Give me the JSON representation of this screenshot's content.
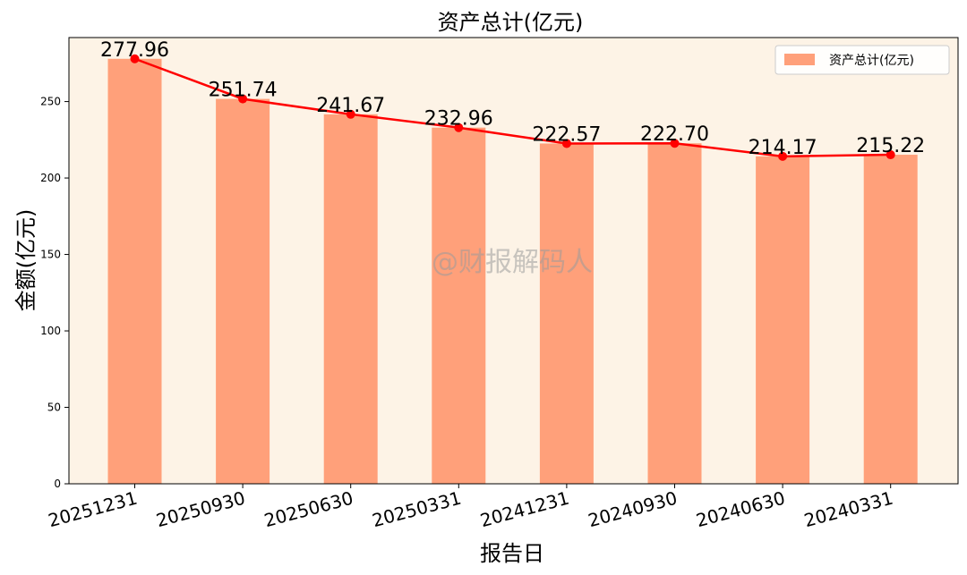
{
  "chart_data": {
    "type": "bar",
    "title": "资产总计(亿元)",
    "xlabel": "报告日",
    "ylabel": "金额(亿元)",
    "categories": [
      "20251231",
      "20250930",
      "20250630",
      "20250331",
      "20241231",
      "20240930",
      "20240630",
      "20240331"
    ],
    "series": [
      {
        "name": "资产总计(亿元)",
        "type": "bar",
        "values": [
          277.96,
          251.74,
          241.67,
          232.96,
          222.57,
          222.7,
          214.17,
          215.22
        ],
        "color": "#FFA07A"
      },
      {
        "type": "line",
        "values": [
          277.96,
          251.74,
          241.67,
          232.96,
          222.57,
          222.7,
          214.17,
          215.22
        ],
        "color": "#FF0000"
      }
    ],
    "data_labels": [
      "277.96",
      "251.74",
      "241.67",
      "232.96",
      "222.57",
      "222.70",
      "214.17",
      "215.22"
    ],
    "yticks": [
      "0",
      "50",
      "100",
      "150",
      "200",
      "250"
    ],
    "ytick_values": [
      0,
      50,
      100,
      150,
      200,
      250
    ],
    "ylim": [
      0,
      291.86
    ],
    "grid": false,
    "legend_position": "top-right",
    "background_color": "#FDF3E6",
    "watermark": "@财报解码人"
  }
}
